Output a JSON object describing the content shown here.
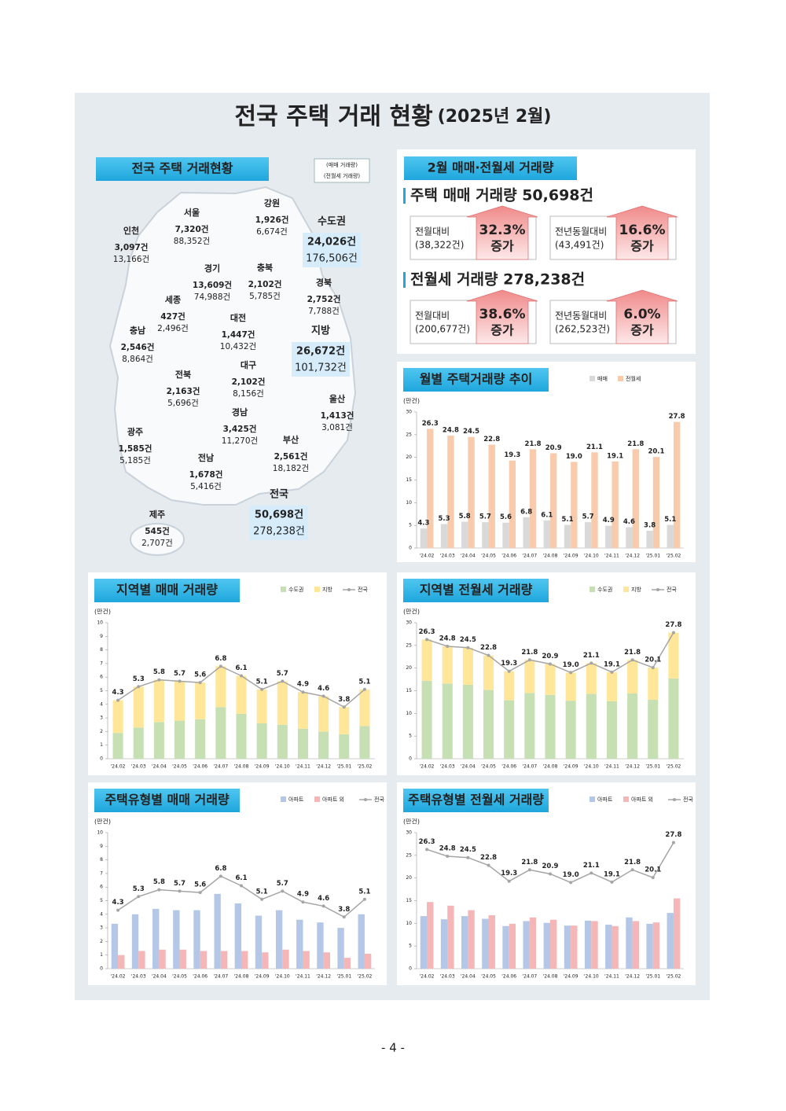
{
  "title": "전국 주택 거래 현황",
  "title_date": "(2025년 2월)",
  "map": {
    "header": "전국 주택 거래현황",
    "legend": [
      "(매매 거래량)",
      "(전월세 거래량)"
    ],
    "regions": [
      {
        "name": "인천",
        "sale": "3,097건",
        "rent": "13,166건"
      },
      {
        "name": "서울",
        "sale": "7,320건",
        "rent": "88,352건"
      },
      {
        "name": "강원",
        "sale": "1,926건",
        "rent": "6,674건"
      },
      {
        "name": "경기",
        "sale": "13,609건",
        "rent": "74,988건"
      },
      {
        "name": "충북",
        "sale": "2,102건",
        "rent": "5,785건"
      },
      {
        "name": "세종",
        "sale": "427건",
        "rent": "2,496건"
      },
      {
        "name": "경북",
        "sale": "2,752건",
        "rent": "7,788건"
      },
      {
        "name": "대전",
        "sale": "1,447건",
        "rent": "10,432건"
      },
      {
        "name": "충남",
        "sale": "2,546건",
        "rent": "8,864건"
      },
      {
        "name": "대구",
        "sale": "2,102건",
        "rent": "8,156건"
      },
      {
        "name": "전북",
        "sale": "2,163건",
        "rent": "5,696건"
      },
      {
        "name": "울산",
        "sale": "1,413건",
        "rent": "3,081건"
      },
      {
        "name": "경남",
        "sale": "3,425건",
        "rent": "11,270건"
      },
      {
        "name": "광주",
        "sale": "1,585건",
        "rent": "5,185건"
      },
      {
        "name": "부산",
        "sale": "2,561건",
        "rent": "18,182건"
      },
      {
        "name": "전남",
        "sale": "1,678건",
        "rent": "5,416건"
      },
      {
        "name": "제주",
        "sale": "545건",
        "rent": "2,707건"
      }
    ],
    "totals": [
      {
        "name": "수도권",
        "sale": "24,026건",
        "rent": "176,506건"
      },
      {
        "name": "지방",
        "sale": "26,672건",
        "rent": "101,732건"
      },
      {
        "name": "전국",
        "sale": "50,698건",
        "rent": "278,238건"
      }
    ]
  },
  "summary": {
    "header": "2월 매매·전월세 거래량",
    "sections": [
      {
        "title": "주택 매매 거래량 50,698건",
        "boxes": [
          {
            "label": "전월대비",
            "base": "(38,322건)",
            "rate": "32.3%",
            "change": "증가"
          },
          {
            "label": "전년동월대비",
            "base": "(43,491건)",
            "rate": "16.6%",
            "change": "증가"
          }
        ]
      },
      {
        "title": "전월세 거래량 278,238건",
        "boxes": [
          {
            "label": "전월대비",
            "base": "(200,677건)",
            "rate": "38.6%",
            "change": "증가"
          },
          {
            "label": "전년동월대비",
            "base": "(262,523건)",
            "rate": "6.0%",
            "change": "증가"
          }
        ]
      }
    ]
  },
  "chart_data": [
    {
      "type": "bar",
      "title": "월별 주택거래량 추이",
      "y_label": "(만건)",
      "stacked": false,
      "categories": [
        "'24.02",
        "'24.03",
        "'24.04",
        "'24.05",
        "'24.06",
        "'24.07",
        "'24.08",
        "'24.09",
        "'24.10",
        "'24.11",
        "'24.12",
        "'25.01",
        "'25.02"
      ],
      "series": [
        {
          "name": "매매",
          "type": "bar",
          "color": "#d9d9d9",
          "values": [
            4.3,
            5.3,
            5.8,
            5.7,
            5.6,
            6.8,
            6.1,
            5.1,
            5.7,
            4.9,
            4.6,
            3.8,
            5.1
          ]
        },
        {
          "name": "전월세",
          "type": "bar",
          "color": "#f8cbad",
          "values": [
            26.3,
            24.8,
            24.5,
            22.8,
            19.3,
            21.8,
            20.9,
            19,
            21.1,
            19.1,
            21.8,
            20.1,
            27.8
          ],
          "value_labels": [
            "26.3",
            "24.8",
            "24.5",
            "22.8",
            "19.3",
            "21.8",
            "20.9",
            "19.0",
            "21.1",
            "19.1",
            "21.8",
            "20.1",
            "27.8"
          ]
        }
      ],
      "ylim": [
        0,
        30
      ],
      "yticks": [
        0,
        5,
        10,
        15,
        20,
        25,
        30
      ]
    },
    {
      "type": "bar",
      "title": "지역별 매매 거래량",
      "y_label": "(만건)",
      "stacked": true,
      "categories": [
        "'24.02",
        "'24.03",
        "'24.04",
        "'24.05",
        "'24.06",
        "'24.07",
        "'24.08",
        "'24.09",
        "'24.10",
        "'24.11",
        "'24.12",
        "'25.01",
        "'25.02"
      ],
      "series": [
        {
          "name": "수도권",
          "type": "bar",
          "color": "#c6e0b4",
          "values": [
            1.9,
            2.3,
            2.7,
            2.8,
            2.9,
            3.8,
            3.3,
            2.6,
            2.5,
            2.2,
            2.0,
            1.8,
            2.4
          ]
        },
        {
          "name": "지방",
          "type": "bar",
          "color": "#ffe699",
          "values": [
            2.4,
            3.0,
            3.1,
            2.9,
            2.7,
            3.0,
            2.8,
            2.5,
            3.2,
            2.7,
            2.6,
            2.0,
            2.7
          ]
        },
        {
          "name": "전국",
          "type": "line",
          "color": "#a5a5a5",
          "values": [
            4.3,
            5.3,
            5.8,
            5.7,
            5.6,
            6.8,
            6.1,
            5.1,
            5.7,
            4.9,
            4.6,
            3.8,
            5.1
          ]
        }
      ],
      "ylim": [
        0,
        10
      ],
      "yticks": [
        0,
        1,
        2,
        3,
        4,
        5,
        6,
        7,
        8,
        9,
        10
      ]
    },
    {
      "type": "bar",
      "title": "지역별 전월세 거래량",
      "y_label": "(만건)",
      "stacked": true,
      "categories": [
        "'24.02",
        "'24.03",
        "'24.04",
        "'24.05",
        "'24.06",
        "'24.07",
        "'24.08",
        "'24.09",
        "'24.10",
        "'24.11",
        "'24.12",
        "'25.01",
        "'25.02"
      ],
      "series": [
        {
          "name": "수도권",
          "type": "bar",
          "color": "#c6e0b4",
          "values": [
            17.2,
            16.6,
            16.3,
            15.2,
            12.9,
            14.5,
            14.1,
            12.8,
            14.3,
            12.7,
            14.4,
            13.0,
            17.7
          ]
        },
        {
          "name": "지방",
          "type": "bar",
          "color": "#ffe699",
          "values": [
            9.1,
            8.2,
            8.2,
            7.6,
            6.4,
            7.3,
            6.8,
            6.2,
            6.8,
            6.4,
            7.4,
            7.1,
            10.1
          ]
        },
        {
          "name": "전국",
          "type": "line",
          "color": "#a5a5a5",
          "values": [
            26.3,
            24.8,
            24.5,
            22.8,
            19.3,
            21.8,
            20.9,
            19,
            21.1,
            19.1,
            21.8,
            20.1,
            27.8
          ],
          "value_labels": [
            "26.3",
            "24.8",
            "24.5",
            "22.8",
            "19.3",
            "21.8",
            "20.9",
            "19.0",
            "21.1",
            "19.1",
            "21.8",
            "20.1",
            "27.8"
          ]
        }
      ],
      "ylim": [
        0,
        30
      ],
      "yticks": [
        0,
        5,
        10,
        15,
        20,
        25,
        30
      ]
    },
    {
      "type": "bar",
      "title": "주택유형별 매매 거래량",
      "y_label": "(만건)",
      "stacked": false,
      "categories": [
        "'24.02",
        "'24.03",
        "'24.04",
        "'24.05",
        "'24.06",
        "'24.07",
        "'24.08",
        "'24.09",
        "'24.10",
        "'24.11",
        "'24.12",
        "'25.01",
        "'25.02"
      ],
      "series": [
        {
          "name": "아파트",
          "type": "bar",
          "color": "#b4c7e7",
          "values": [
            3.3,
            4.0,
            4.4,
            4.3,
            4.3,
            5.5,
            4.8,
            3.9,
            4.3,
            3.6,
            3.4,
            3.0,
            4.0
          ]
        },
        {
          "name": "아파트 외",
          "type": "bar",
          "color": "#f4b6b6",
          "values": [
            1.0,
            1.3,
            1.4,
            1.4,
            1.3,
            1.3,
            1.3,
            1.2,
            1.4,
            1.3,
            1.2,
            0.8,
            1.1
          ]
        },
        {
          "name": "전국",
          "type": "line",
          "color": "#a5a5a5",
          "values": [
            4.3,
            5.3,
            5.8,
            5.7,
            5.6,
            6.8,
            6.1,
            5.1,
            5.7,
            4.9,
            4.6,
            3.8,
            5.1
          ]
        }
      ],
      "ylim": [
        0,
        10
      ],
      "yticks": [
        0,
        1,
        2,
        3,
        4,
        5,
        6,
        7,
        8,
        9,
        10
      ]
    },
    {
      "type": "bar",
      "title": "주택유형별 전월세 거래량",
      "y_label": "(만건)",
      "stacked": false,
      "categories": [
        "'24.02",
        "'24.03",
        "'24.04",
        "'24.05",
        "'24.06",
        "'24.07",
        "'24.08",
        "'24.09",
        "'24.10",
        "'24.11",
        "'24.12",
        "'25.01",
        "'25.02"
      ],
      "series": [
        {
          "name": "아파트",
          "type": "bar",
          "color": "#b4c7e7",
          "values": [
            11.6,
            10.9,
            11.6,
            11.0,
            9.4,
            10.5,
            10.1,
            9.5,
            10.6,
            9.7,
            11.3,
            9.9,
            12.3
          ]
        },
        {
          "name": "아파트 외",
          "type": "bar",
          "color": "#f4b6b6",
          "values": [
            14.7,
            13.9,
            12.9,
            11.8,
            9.9,
            11.3,
            10.8,
            9.5,
            10.5,
            9.4,
            10.5,
            10.2,
            15.5
          ]
        },
        {
          "name": "전국",
          "type": "line",
          "color": "#a5a5a5",
          "values": [
            26.3,
            24.8,
            24.5,
            22.8,
            19.3,
            21.8,
            20.9,
            19,
            21.1,
            19.1,
            21.8,
            20.1,
            27.8
          ],
          "value_labels": [
            "26.3",
            "24.8",
            "24.5",
            "22.8",
            "19.3",
            "21.8",
            "20.9",
            "19.0",
            "21.1",
            "19.1",
            "21.8",
            "20.1",
            "27.8"
          ]
        }
      ],
      "ylim": [
        0,
        30
      ],
      "yticks": [
        0,
        5,
        10,
        15,
        20,
        25,
        30
      ]
    }
  ],
  "page_number": "- 4 -"
}
